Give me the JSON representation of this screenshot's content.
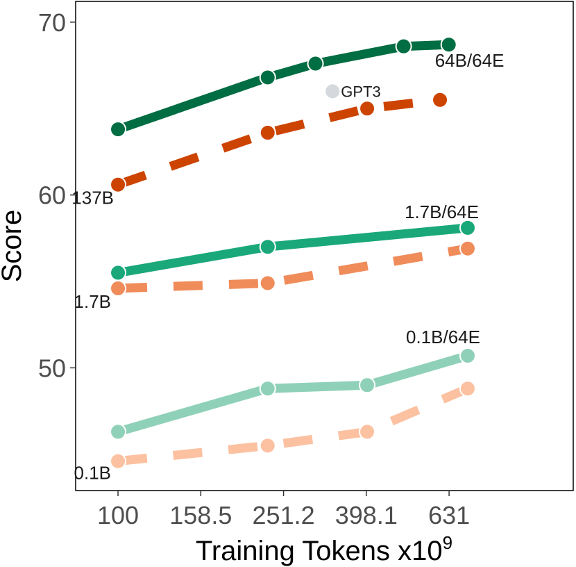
{
  "chart_data": {
    "type": "line",
    "title": "",
    "xlabel": "Training Tokens x10",
    "xlabel_superscript": "9",
    "ylabel": "Score",
    "x_scale": "log",
    "x_ticks": [
      100,
      158.5,
      251.2,
      398.1,
      631
    ],
    "x_tick_labels": [
      "100",
      "158.5",
      "251.2",
      "398.1",
      "631"
    ],
    "xlim": [
      79,
      1259
    ],
    "y_ticks": [
      50,
      60,
      70
    ],
    "y_tick_labels": [
      "50",
      "60",
      "70"
    ],
    "ylim": [
      42.9,
      71.2
    ],
    "grid": false,
    "legend": "none",
    "series": [
      {
        "name": "64B/64E",
        "color": "#006d42",
        "dash": "solid",
        "x": [
          100,
          230,
          300,
          490,
          630
        ],
        "y": [
          63.8,
          66.8,
          67.6,
          68.6,
          68.7
        ]
      },
      {
        "name": "137B",
        "color": "#cc4400",
        "dash": "dashed",
        "x": [
          100,
          230,
          400,
          600
        ],
        "y": [
          60.6,
          63.6,
          65.0,
          65.5
        ]
      },
      {
        "name": "1.7B/64E",
        "color": "#1aa87a",
        "dash": "solid",
        "x": [
          100,
          230,
          700
        ],
        "y": [
          55.5,
          57.0,
          58.1
        ]
      },
      {
        "name": "1.7B",
        "color": "#f08c5a",
        "dash": "dashed",
        "x": [
          100,
          230,
          700
        ],
        "y": [
          54.6,
          54.9,
          56.9
        ]
      },
      {
        "name": "0.1B/64E",
        "color": "#8fd1b8",
        "dash": "solid",
        "x": [
          100,
          230,
          400,
          700
        ],
        "y": [
          46.3,
          48.8,
          49.0,
          50.7
        ]
      },
      {
        "name": "0.1B",
        "color": "#fcc1a0",
        "dash": "dashed",
        "x": [
          100,
          230,
          400,
          700
        ],
        "y": [
          44.6,
          45.5,
          46.3,
          48.8
        ]
      }
    ],
    "annotations": [
      {
        "text": "GPT3",
        "x": 330,
        "y": 66.0,
        "color": "#d5d8dc"
      }
    ]
  }
}
